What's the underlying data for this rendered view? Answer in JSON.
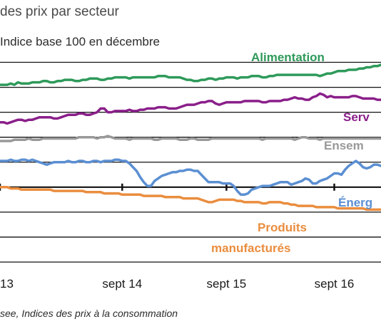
{
  "chart_data": {
    "type": "line",
    "title": "des prix par secteur",
    "subtitle": "Indice base 100 en décembre",
    "source": "see, Indices des prix à la consommation",
    "x": [
      0,
      1,
      2,
      3,
      4,
      5,
      6,
      7,
      8,
      9,
      10,
      11,
      12,
      13,
      14,
      15,
      16,
      17,
      18,
      19,
      20,
      21,
      22,
      23,
      24,
      25,
      26,
      27,
      28,
      29,
      30,
      31,
      32,
      33,
      34,
      35,
      36,
      37,
      38,
      39,
      40,
      41,
      42,
      43,
      44,
      45,
      46,
      47,
      48,
      49,
      50,
      51,
      52,
      53,
      54,
      55,
      56,
      57,
      58,
      59,
      60,
      61,
      62,
      63,
      64,
      65,
      66,
      67,
      68,
      69,
      70,
      71,
      72,
      73,
      74,
      75,
      76,
      77,
      78,
      79,
      80,
      81,
      82,
      83,
      84,
      85,
      86,
      87,
      88,
      89,
      90,
      91,
      92,
      93,
      94,
      95,
      96,
      97,
      98,
      99,
      100,
      101,
      102,
      103,
      104,
      105,
      106
    ],
    "x_tick_positions": [
      0,
      34,
      63,
      93
    ],
    "x_tick_labels": [
      "13",
      "sept 14",
      "sept 15",
      "sept 16"
    ],
    "baseline": 100,
    "ylim": [
      94,
      111
    ],
    "grid": "horizontal",
    "series": [
      {
        "name": "Alimentation",
        "color": "#2e9a5a",
        "values": [
          108.2,
          108.2,
          108.2,
          108.3,
          108.2,
          108.4,
          108.3,
          108.3,
          108.3,
          108.4,
          108.4,
          108.4,
          108.5,
          108.5,
          108.4,
          108.4,
          108.5,
          108.5,
          108.6,
          108.6,
          108.6,
          108.5,
          108.5,
          108.6,
          108.6,
          108.7,
          108.7,
          108.7,
          108.6,
          108.6,
          108.7,
          108.7,
          108.8,
          108.8,
          108.8,
          108.8,
          108.7,
          108.8,
          108.8,
          108.8,
          108.8,
          108.8,
          108.8,
          108.8,
          108.9,
          108.9,
          108.9,
          108.8,
          108.8,
          108.8,
          108.8,
          108.7,
          108.6,
          108.6,
          108.5,
          108.5,
          108.6,
          108.6,
          108.7,
          108.7,
          108.6,
          108.7,
          108.7,
          108.8,
          108.8,
          108.8,
          108.7,
          108.8,
          108.8,
          108.8,
          108.9,
          108.9,
          108.9,
          108.8,
          108.8,
          108.9,
          108.9,
          109.0,
          109.0,
          109.0,
          109.0,
          109.0,
          109.0,
          109.0,
          109.0,
          109.0,
          109.0,
          109.0,
          109.0,
          108.9,
          109.0,
          109.1,
          109.1,
          109.2,
          109.3,
          109.3,
          109.3,
          109.4,
          109.4,
          109.4,
          109.5,
          109.5,
          109.6,
          109.6,
          109.7,
          109.7,
          109.8
        ]
      },
      {
        "name": "Services",
        "color": "#8a1f8a",
        "values": [
          105.2,
          105.2,
          105.1,
          105.2,
          105.3,
          105.4,
          105.4,
          105.3,
          105.4,
          105.4,
          105.5,
          105.6,
          105.6,
          105.6,
          105.6,
          105.5,
          105.5,
          105.6,
          105.7,
          105.8,
          105.8,
          105.8,
          105.9,
          105.9,
          105.8,
          105.8,
          105.9,
          106.0,
          106.3,
          106.3,
          106.0,
          106.0,
          106.1,
          106.1,
          106.1,
          106.1,
          106.2,
          106.1,
          106.1,
          106.2,
          106.2,
          106.3,
          106.3,
          106.3,
          106.4,
          106.4,
          106.4,
          106.3,
          106.3,
          106.3,
          106.4,
          106.5,
          106.6,
          106.6,
          106.6,
          106.7,
          106.8,
          106.8,
          106.9,
          106.9,
          106.7,
          106.6,
          106.7,
          106.8,
          106.8,
          106.8,
          106.8,
          106.8,
          106.9,
          106.9,
          106.9,
          106.9,
          106.9,
          106.8,
          106.8,
          106.9,
          106.9,
          106.9,
          106.9,
          107.0,
          107.0,
          107.1,
          107.2,
          107.1,
          107.1,
          107.0,
          107.0,
          107.2,
          107.3,
          107.5,
          107.4,
          107.2,
          107.3,
          107.2,
          107.2,
          107.2,
          107.2,
          107.2,
          107.3,
          107.3,
          107.2,
          107.1,
          107.1,
          107.1,
          107.1,
          107.0,
          107.0
        ]
      },
      {
        "name": "Ensemble",
        "color": "#999999",
        "values": [
          103.7,
          103.7,
          103.7,
          103.7,
          103.8,
          103.8,
          103.8,
          103.8,
          103.9,
          103.8,
          103.8,
          103.8,
          103.9,
          103.9,
          103.9,
          103.9,
          103.9,
          103.9,
          103.9,
          103.9,
          103.9,
          103.9,
          104.0,
          104.0,
          104.0,
          104.0,
          104.0,
          103.9,
          104.0,
          104.0,
          104.1,
          104.0,
          103.9,
          103.9,
          103.9,
          103.9,
          103.8,
          103.9,
          103.9,
          103.9,
          103.9,
          103.9,
          103.9,
          103.8,
          103.8,
          103.9,
          103.9,
          103.9,
          103.9,
          103.9,
          103.8,
          103.8,
          103.8,
          103.9,
          103.9,
          103.8,
          103.8,
          103.8,
          103.8,
          103.9,
          103.9,
          103.9,
          103.9,
          103.9,
          103.9,
          103.9,
          103.9,
          103.9,
          103.9,
          103.9,
          103.9,
          103.9,
          103.9,
          103.8,
          103.9,
          103.9,
          103.9,
          103.9,
          103.9,
          103.9,
          103.9,
          103.9,
          103.8,
          103.9,
          104.0,
          104.0,
          103.9,
          103.9,
          103.9,
          103.8,
          103.9,
          103.9,
          103.9,
          103.9,
          103.9,
          103.9,
          103.9,
          103.9,
          103.9,
          103.9,
          103.9,
          103.9,
          103.9,
          103.9,
          103.9,
          103.9,
          103.9
        ]
      },
      {
        "name": "Énergie",
        "color": "#5b8fd2",
        "values": [
          102.1,
          102.1,
          102.1,
          102.2,
          102.1,
          102.1,
          102.2,
          102.2,
          102.1,
          102.2,
          102.1,
          102.0,
          101.9,
          101.8,
          101.9,
          102.0,
          102.0,
          102.0,
          102.0,
          102.1,
          102.0,
          102.0,
          102.1,
          102.1,
          102.0,
          102.0,
          102.1,
          102.1,
          102.0,
          102.1,
          102.1,
          102.1,
          102.2,
          102.2,
          102.1,
          102.1,
          101.9,
          101.6,
          101.3,
          100.8,
          100.4,
          100.1,
          100.1,
          100.5,
          100.7,
          100.9,
          101.0,
          101.1,
          101.2,
          101.2,
          101.3,
          101.3,
          101.4,
          101.4,
          101.3,
          101.3,
          101.0,
          100.7,
          100.4,
          100.4,
          100.4,
          100.4,
          100.3,
          100.3,
          100.3,
          100.1,
          99.7,
          99.4,
          99.4,
          99.5,
          99.8,
          99.9,
          100.0,
          100.1,
          100.1,
          100.1,
          100.2,
          100.3,
          100.4,
          100.4,
          100.4,
          100.2,
          100.3,
          100.4,
          100.5,
          100.7,
          100.6,
          100.3,
          100.3,
          100.5,
          100.6,
          100.7,
          100.9,
          101.1,
          101.1,
          101.0,
          101.4,
          101.7,
          101.9,
          102.1,
          101.9,
          101.6,
          101.5,
          101.6,
          101.8,
          101.8,
          101.7
        ]
      },
      {
        "name": "Produits manufacturés",
        "color": "#ea8d3e",
        "values": [
          100.0,
          100.0,
          100.0,
          99.9,
          99.9,
          99.9,
          99.8,
          99.8,
          99.8,
          99.8,
          99.8,
          99.8,
          99.8,
          99.8,
          99.8,
          99.7,
          99.7,
          99.7,
          99.7,
          99.7,
          99.7,
          99.7,
          99.7,
          99.7,
          99.6,
          99.6,
          99.6,
          99.6,
          99.6,
          99.5,
          99.5,
          99.5,
          99.5,
          99.5,
          99.4,
          99.4,
          99.4,
          99.4,
          99.4,
          99.4,
          99.3,
          99.3,
          99.3,
          99.3,
          99.3,
          99.3,
          99.2,
          99.2,
          99.2,
          99.2,
          99.2,
          99.1,
          99.1,
          99.1,
          99.1,
          99.1,
          99.0,
          98.9,
          98.8,
          98.8,
          98.9,
          99.0,
          99.0,
          99.0,
          99.0,
          99.0,
          98.9,
          98.9,
          98.8,
          98.8,
          98.8,
          98.8,
          98.8,
          98.7,
          98.7,
          98.8,
          98.8,
          98.8,
          98.8,
          98.7,
          98.7,
          98.6,
          98.6,
          98.5,
          98.5,
          98.5,
          98.5,
          98.5,
          98.4,
          98.4,
          98.4,
          98.4,
          98.4,
          98.4,
          98.3,
          98.3,
          98.3,
          98.3,
          98.3,
          98.3,
          98.3,
          98.3,
          98.2,
          98.2,
          98.2,
          98.2,
          98.2
        ]
      }
    ]
  },
  "series_labels": {
    "alimentation": "Alimentation",
    "services": "Serv",
    "ensemble": "Ensem",
    "energie": "Énerg",
    "manufactures_1": "Produits",
    "manufactures_2": "manufacturés"
  }
}
